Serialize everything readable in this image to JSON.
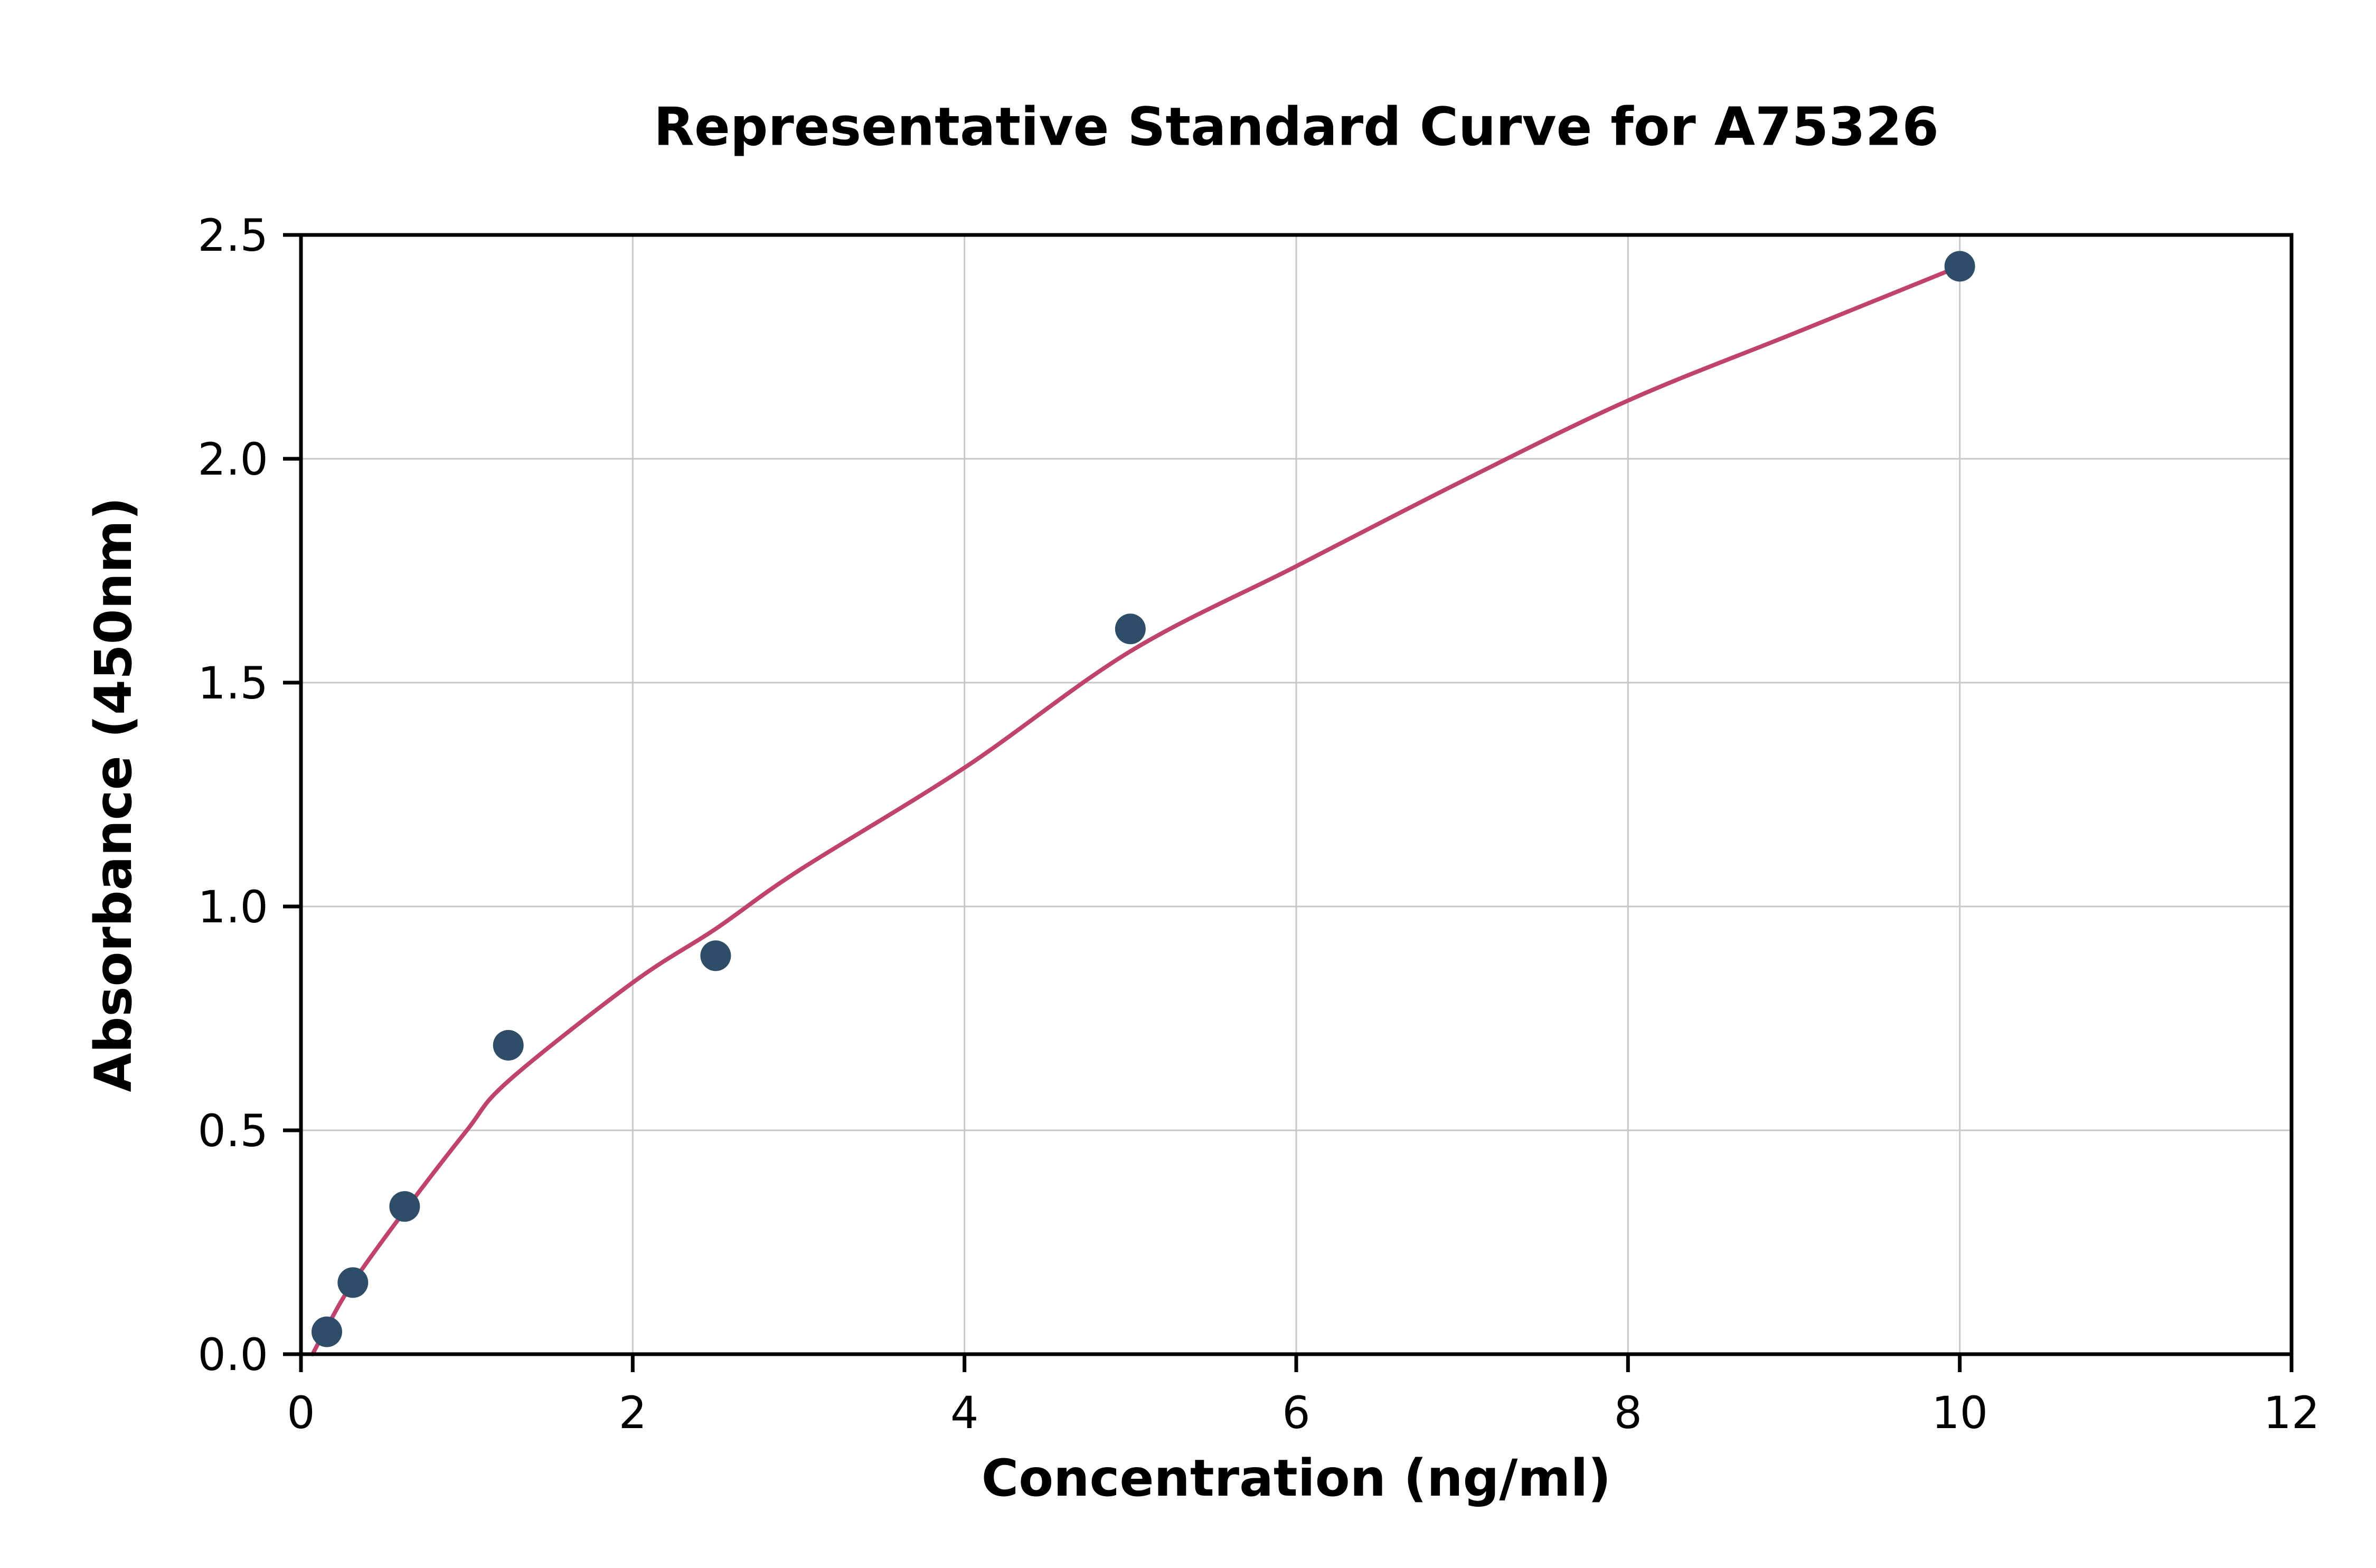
{
  "figure": {
    "background_color": "#ffffff"
  },
  "chart_data": {
    "type": "scatter",
    "title": "Representative Standard Curve for A75326",
    "xlabel": "Concentration (ng/ml)",
    "ylabel": "Absorbance (450nm)",
    "xlim": [
      0,
      12
    ],
    "ylim": [
      0,
      2.5
    ],
    "x_ticks": [
      0,
      2,
      4,
      6,
      8,
      10,
      12
    ],
    "x_tick_labels": [
      "0",
      "2",
      "4",
      "6",
      "8",
      "10",
      "12"
    ],
    "y_ticks": [
      0.0,
      0.5,
      1.0,
      1.5,
      2.0,
      2.5
    ],
    "y_tick_labels": [
      "0.0",
      "0.5",
      "1.0",
      "1.5",
      "2.0",
      "2.5"
    ],
    "grid": true,
    "grid_color": "#c8c8c8",
    "spine_color": "#000000",
    "legend_position": "none",
    "series": [
      {
        "name": "standard-points",
        "type": "scatter",
        "color": "#2e4d68",
        "marker_radius": 29,
        "points": [
          {
            "x": 0.156,
            "y": 0.05
          },
          {
            "x": 0.313,
            "y": 0.16
          },
          {
            "x": 0.625,
            "y": 0.33
          },
          {
            "x": 1.25,
            "y": 0.69
          },
          {
            "x": 2.5,
            "y": 0.89
          },
          {
            "x": 5,
            "y": 1.62
          },
          {
            "x": 10,
            "y": 2.43
          }
        ]
      },
      {
        "name": "fitted-curve",
        "type": "line",
        "color": "#c0436b",
        "stroke_width": 8,
        "points": [
          {
            "x": 0.07,
            "y": 0.0
          },
          {
            "x": 0.156,
            "y": 0.06
          },
          {
            "x": 0.313,
            "y": 0.16
          },
          {
            "x": 0.625,
            "y": 0.32
          },
          {
            "x": 1.0,
            "y": 0.5
          },
          {
            "x": 1.25,
            "y": 0.61
          },
          {
            "x": 2.0,
            "y": 0.83
          },
          {
            "x": 2.5,
            "y": 0.95
          },
          {
            "x": 3.0,
            "y": 1.08
          },
          {
            "x": 4.0,
            "y": 1.31
          },
          {
            "x": 5.0,
            "y": 1.57
          },
          {
            "x": 6.0,
            "y": 1.76
          },
          {
            "x": 7.0,
            "y": 1.95
          },
          {
            "x": 8.0,
            "y": 2.13
          },
          {
            "x": 9.0,
            "y": 2.28
          },
          {
            "x": 10.0,
            "y": 2.43
          }
        ]
      }
    ]
  }
}
